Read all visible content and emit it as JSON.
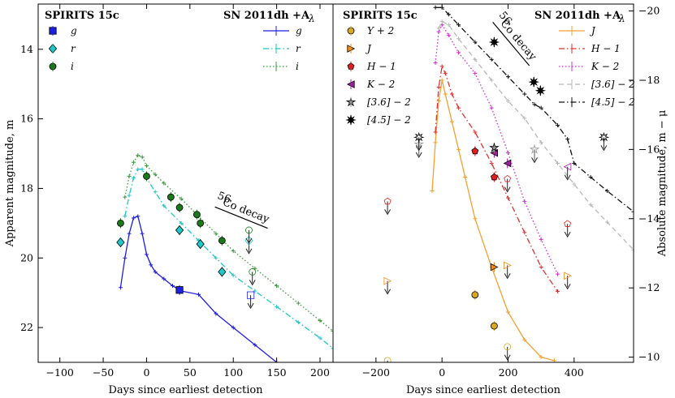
{
  "chart_data": [
    {
      "type": "scatter",
      "panel": "left",
      "xlabel": "Days since earliest detection",
      "ylabel": "Apparent magnitude, m",
      "xlim": [
        -125,
        215
      ],
      "ylim": [
        23.0,
        12.7
      ],
      "x_ticks": [
        -100,
        -50,
        0,
        50,
        100,
        150,
        200
      ],
      "y_ticks": [
        14,
        16,
        18,
        20,
        22
      ],
      "legend_left_title": "SPIRITS 15c",
      "legend_right_title": "SN 2011dh +A",
      "legend_right_title_sub": "λ",
      "decay_label": "Co decay",
      "decay_label_sup": "56",
      "series": [
        {
          "name": "g",
          "color": "#1f1fe0",
          "marker": "square",
          "points": [
            [
              38,
              20.92
            ],
            [
              120,
              21.07
            ]
          ],
          "uplims": [
            120
          ]
        },
        {
          "name": "r",
          "color": "#1ec8c8",
          "marker": "diamond",
          "points": [
            [
              -30,
              19.55
            ],
            [
              38,
              19.2
            ],
            [
              62,
              19.6
            ],
            [
              87,
              20.4
            ],
            [
              118,
              19.5
            ]
          ],
          "uplims": [
            118
          ]
        },
        {
          "name": "i",
          "color": "#1a7a1a",
          "marker": "circle",
          "points": [
            [
              -30,
              19.0
            ],
            [
              0,
              17.65
            ],
            [
              28,
              18.25
            ],
            [
              38,
              18.55
            ],
            [
              58,
              18.75
            ],
            [
              62,
              19.0
            ],
            [
              87,
              19.5
            ],
            [
              118,
              19.2
            ],
            [
              122,
              20.4
            ]
          ],
          "uplims": [
            118,
            122
          ]
        }
      ],
      "template_series": [
        {
          "name": "g",
          "color": "#1f1fe0",
          "style": "solid",
          "x": [
            -30,
            -25,
            -20,
            -15,
            -10,
            -5,
            0,
            5,
            10,
            20,
            30,
            40,
            60,
            80,
            100,
            125,
            150
          ],
          "y": [
            20.85,
            20.0,
            19.3,
            18.85,
            18.8,
            19.3,
            19.9,
            20.2,
            20.4,
            20.6,
            20.8,
            20.95,
            21.05,
            21.6,
            22.0,
            22.5,
            23.0
          ]
        },
        {
          "name": "r",
          "color": "#1ec8c8",
          "style": "dashdot",
          "x": [
            -25,
            -20,
            -15,
            -10,
            -5,
            0,
            10,
            20,
            40,
            60,
            80,
            100,
            125,
            150,
            175,
            200,
            215
          ],
          "y": [
            18.8,
            18.2,
            17.7,
            17.45,
            17.45,
            17.7,
            18.1,
            18.5,
            19.0,
            19.5,
            20.0,
            20.5,
            20.95,
            21.4,
            21.85,
            22.3,
            22.6
          ]
        },
        {
          "name": "i",
          "color": "#3a9a3a",
          "style": "dotted",
          "x": [
            -25,
            -20,
            -15,
            -10,
            -5,
            0,
            10,
            20,
            40,
            60,
            80,
            100,
            125,
            150,
            175,
            200,
            215
          ],
          "y": [
            18.25,
            17.65,
            17.25,
            17.05,
            17.1,
            17.35,
            17.6,
            17.85,
            18.3,
            18.8,
            19.3,
            19.8,
            20.3,
            20.8,
            21.3,
            21.8,
            22.1
          ]
        }
      ]
    },
    {
      "type": "scatter",
      "panel": "right",
      "xlabel": "Days since earliest detection",
      "ylabel": "Absolute magnitude, m − μ",
      "xlim": [
        -330,
        580
      ],
      "ylim": [
        -9.85,
        -20.2
      ],
      "x_ticks": [
        -200,
        0,
        200,
        400
      ],
      "y_ticks": [
        -10,
        -12,
        -14,
        -16,
        -18,
        -20
      ],
      "legend_left_title": "SPIRITS 15c",
      "legend_right_title": "SN 2011dh +A",
      "legend_right_title_sub": "λ",
      "decay_label": "Co decay",
      "decay_label_sup": "56",
      "legend_left": [
        "Y + 2",
        "J",
        "H − 1",
        "K − 2",
        "[3.6] − 2",
        "[4.5] − 2"
      ],
      "legend_right": [
        "J",
        "H − 1",
        "K − 2",
        "[3.6] − 2",
        "[4.5] − 2"
      ],
      "series": [
        {
          "name": "Y + 2",
          "color": "#d9a820",
          "marker": "circle",
          "points": [
            [
              -165,
              -9.9
            ],
            [
              100,
              -11.8
            ],
            [
              158,
              -10.9
            ],
            [
              198,
              -10.3
            ]
          ],
          "uplims": [
            -165,
            198
          ]
        },
        {
          "name": "J",
          "color": "#f08a1a",
          "marker": "triangle-right",
          "points": [
            [
              -165,
              -12.2
            ],
            [
              158,
              -12.6
            ],
            [
              198,
              -12.65
            ],
            [
              380,
              -12.35
            ]
          ],
          "uplims": [
            -165,
            198,
            380
          ]
        },
        {
          "name": "H − 1",
          "color": "#e02020",
          "marker": "pentagon",
          "points": [
            [
              -165,
              -14.5
            ],
            [
              100,
              -15.95
            ],
            [
              158,
              -15.2
            ],
            [
              198,
              -15.15
            ],
            [
              380,
              -13.85
            ]
          ],
          "uplims": [
            -165,
            198,
            380
          ]
        },
        {
          "name": "K − 2",
          "color": "#a020a0",
          "marker": "triangle-left",
          "points": [
            [
              158,
              -15.9
            ],
            [
              198,
              -15.6
            ],
            [
              380,
              -15.5
            ]
          ],
          "uplims": [
            380
          ]
        },
        {
          "name": "[3.6] − 2",
          "color": "#999999",
          "marker": "star",
          "points": [
            [
              -70,
              -16.15
            ],
            [
              158,
              -16.05
            ],
            [
              280,
              -16.0
            ]
          ],
          "uplims": [
            -70,
            280
          ]
        },
        {
          "name": "[4.5] − 2",
          "color": "#000000",
          "marker": "burst",
          "points": [
            [
              -70,
              -16.35
            ],
            [
              158,
              -19.1
            ],
            [
              278,
              -17.95
            ],
            [
              298,
              -17.7
            ],
            [
              490,
              -16.35
            ]
          ],
          "uplims": [
            -70,
            490
          ]
        }
      ],
      "template_series": [
        {
          "name": "J",
          "color": "#f5a030",
          "style": "solid",
          "x": [
            -30,
            -20,
            -10,
            0,
            10,
            30,
            50,
            70,
            100,
            150,
            200,
            250,
            300,
            340
          ],
          "y": [
            -14.8,
            -16.2,
            -17.4,
            -18.0,
            -17.6,
            -16.8,
            -16.0,
            -15.2,
            -14.0,
            -12.6,
            -11.3,
            -10.5,
            -10.0,
            -9.9
          ]
        },
        {
          "name": "H − 1",
          "color": "#e03030",
          "style": "dashdot",
          "x": [
            -20,
            -10,
            0,
            10,
            30,
            50,
            100,
            150,
            200,
            250,
            300,
            350
          ],
          "y": [
            -16.5,
            -17.8,
            -18.4,
            -18.2,
            -17.6,
            -17.2,
            -16.5,
            -15.6,
            -14.6,
            -13.6,
            -12.6,
            -11.9
          ]
        },
        {
          "name": "K − 2",
          "color": "#cc33cc",
          "style": "dotted",
          "x": [
            -20,
            -10,
            0,
            20,
            50,
            100,
            150,
            200,
            250,
            300,
            350
          ],
          "y": [
            -18.5,
            -19.4,
            -19.6,
            -19.3,
            -18.8,
            -18.2,
            -17.2,
            -15.9,
            -14.5,
            -13.4,
            -12.4
          ]
        },
        {
          "name": "[3.6] − 2",
          "color": "#b8b8b8",
          "style": "dashed",
          "x": [
            -10,
            0,
            20,
            50,
            100,
            150,
            200,
            250,
            300,
            350,
            400,
            450,
            500,
            580
          ],
          "y": [
            -19.5,
            -19.7,
            -19.6,
            -19.2,
            -18.6,
            -18.0,
            -17.4,
            -16.9,
            -16.2,
            -15.6,
            -15.0,
            -14.4,
            -13.9,
            -13.1
          ]
        },
        {
          "name": "[4.5] − 2",
          "color": "#111111",
          "style": "dashdot",
          "x": [
            -20,
            0,
            20,
            50,
            100,
            150,
            200,
            250,
            280,
            300,
            350,
            380,
            400,
            450,
            500,
            580
          ],
          "y": [
            -20.1,
            -20.1,
            -19.9,
            -19.6,
            -19.1,
            -18.6,
            -18.1,
            -17.6,
            -17.3,
            -17.2,
            -16.7,
            -16.3,
            -15.6,
            -15.2,
            -14.8,
            -14.2
          ]
        }
      ]
    }
  ]
}
